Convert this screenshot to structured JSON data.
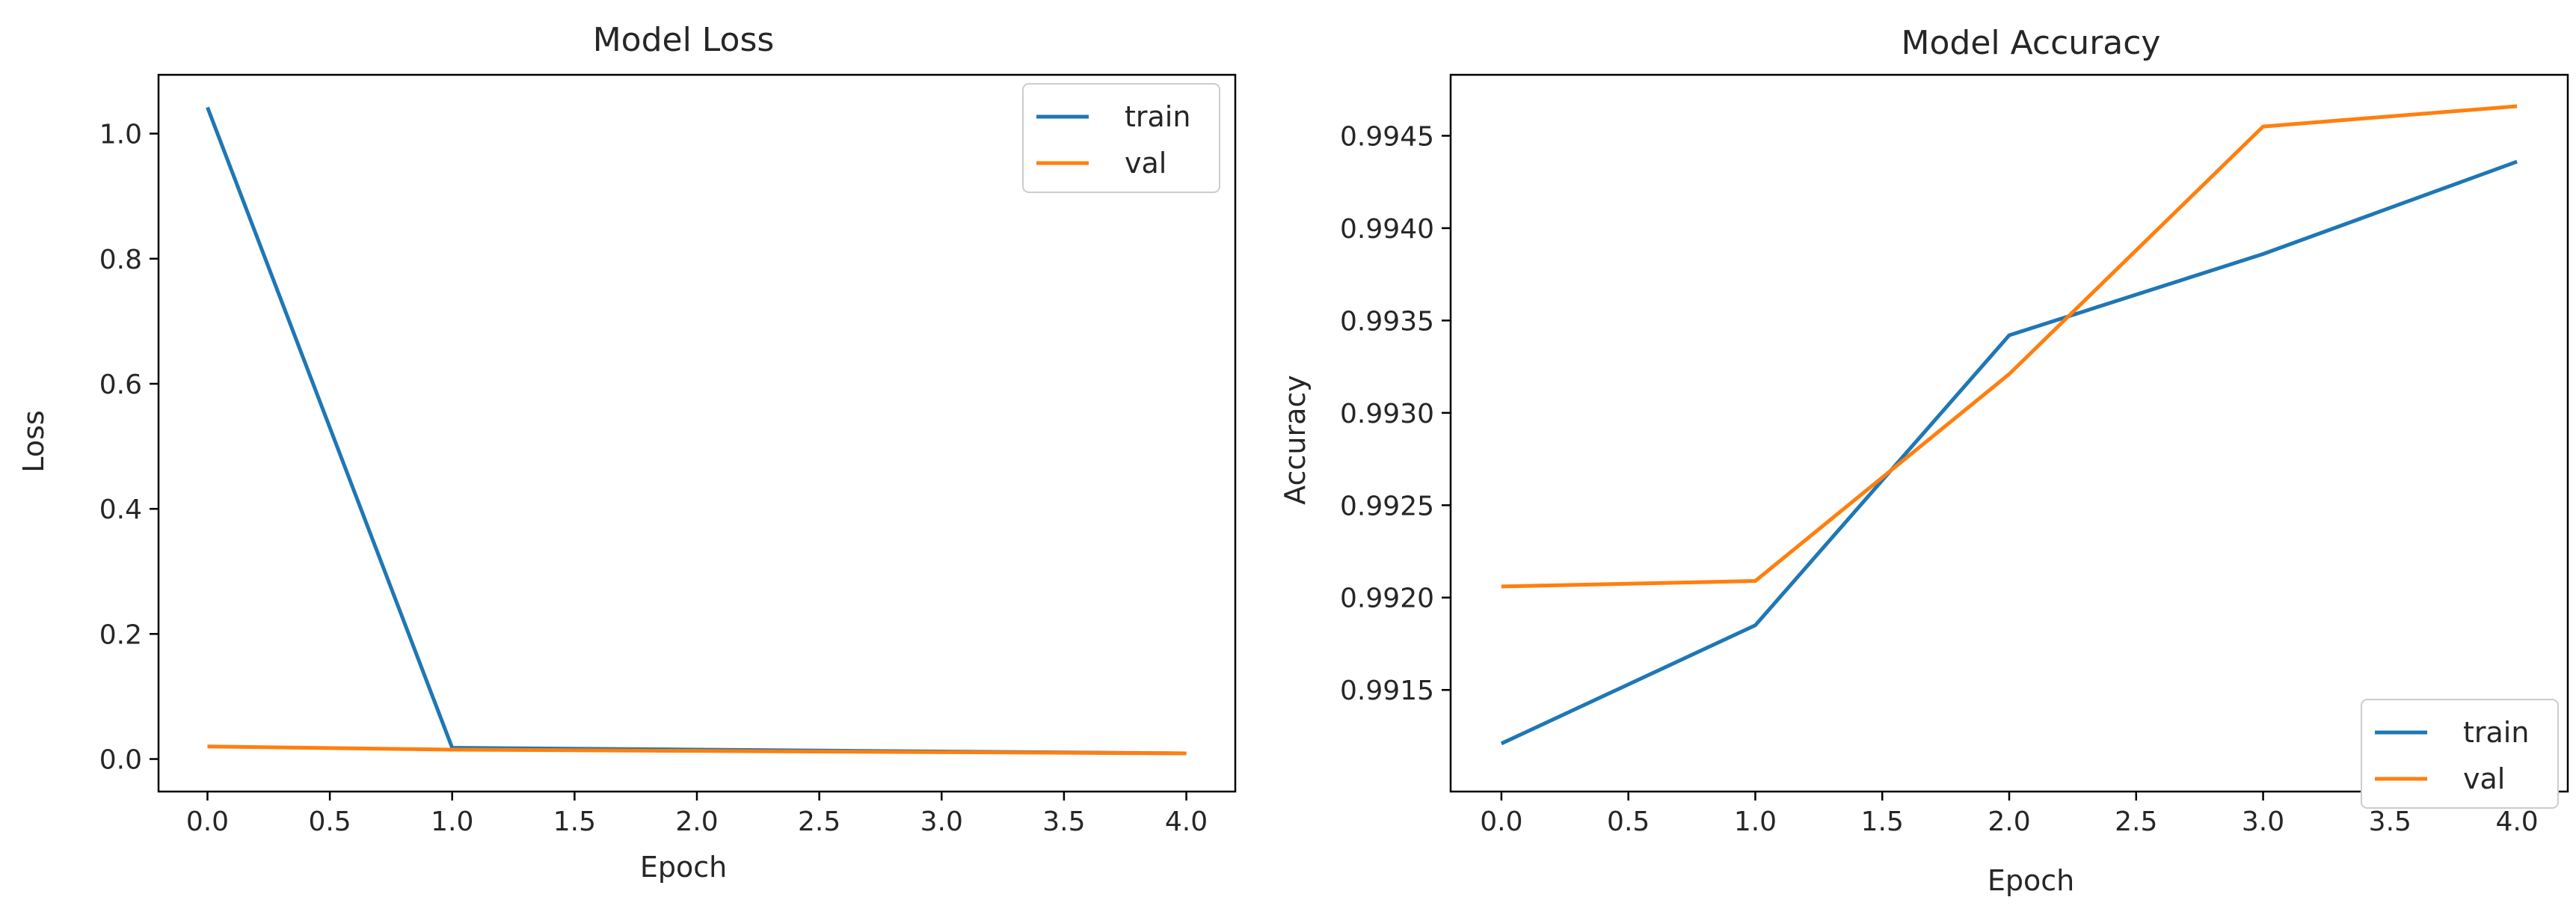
{
  "colors": {
    "train": "#1f77b4",
    "val": "#ff7f0e",
    "axis": "#000000",
    "text": "#262626"
  },
  "chart_data": [
    {
      "type": "line",
      "title": "Model Loss",
      "xlabel": "Epoch",
      "ylabel": "Loss",
      "xlim": [
        -0.2,
        4.2
      ],
      "ylim": [
        -0.052,
        1.094
      ],
      "xticks": [
        "0.0",
        "0.5",
        "1.0",
        "1.5",
        "2.0",
        "2.5",
        "3.0",
        "3.5",
        "4.0"
      ],
      "yticks": [
        "0.0",
        "0.2",
        "0.4",
        "0.6",
        "0.8",
        "1.0"
      ],
      "x": [
        0,
        1,
        2,
        3,
        4
      ],
      "series": [
        {
          "name": "train",
          "values": [
            1.042,
            0.018,
            0.015,
            0.012,
            0.009
          ]
        },
        {
          "name": "val",
          "values": [
            0.02,
            0.015,
            0.013,
            0.011,
            0.009
          ]
        }
      ],
      "legend": "top-right",
      "grid": false
    },
    {
      "type": "line",
      "title": "Model Accuracy",
      "xlabel": "Epoch",
      "ylabel": "Accuracy",
      "xlim": [
        -0.2,
        4.2
      ],
      "ylim": [
        0.99095,
        0.99483
      ],
      "xticks": [
        "0.0",
        "0.5",
        "1.0",
        "1.5",
        "2.0",
        "2.5",
        "3.0",
        "3.5",
        "4.0"
      ],
      "yticks": [
        "0.9915",
        "0.9920",
        "0.9925",
        "0.9930",
        "0.9935",
        "0.9940",
        "0.9945"
      ],
      "x": [
        0,
        1,
        2,
        3,
        4
      ],
      "series": [
        {
          "name": "train",
          "values": [
            0.99121,
            0.99185,
            0.99342,
            0.99386,
            0.99436
          ]
        },
        {
          "name": "val",
          "values": [
            0.99206,
            0.99209,
            0.99321,
            0.99455,
            0.99466
          ]
        }
      ],
      "legend": "bottom-right",
      "grid": false
    }
  ]
}
